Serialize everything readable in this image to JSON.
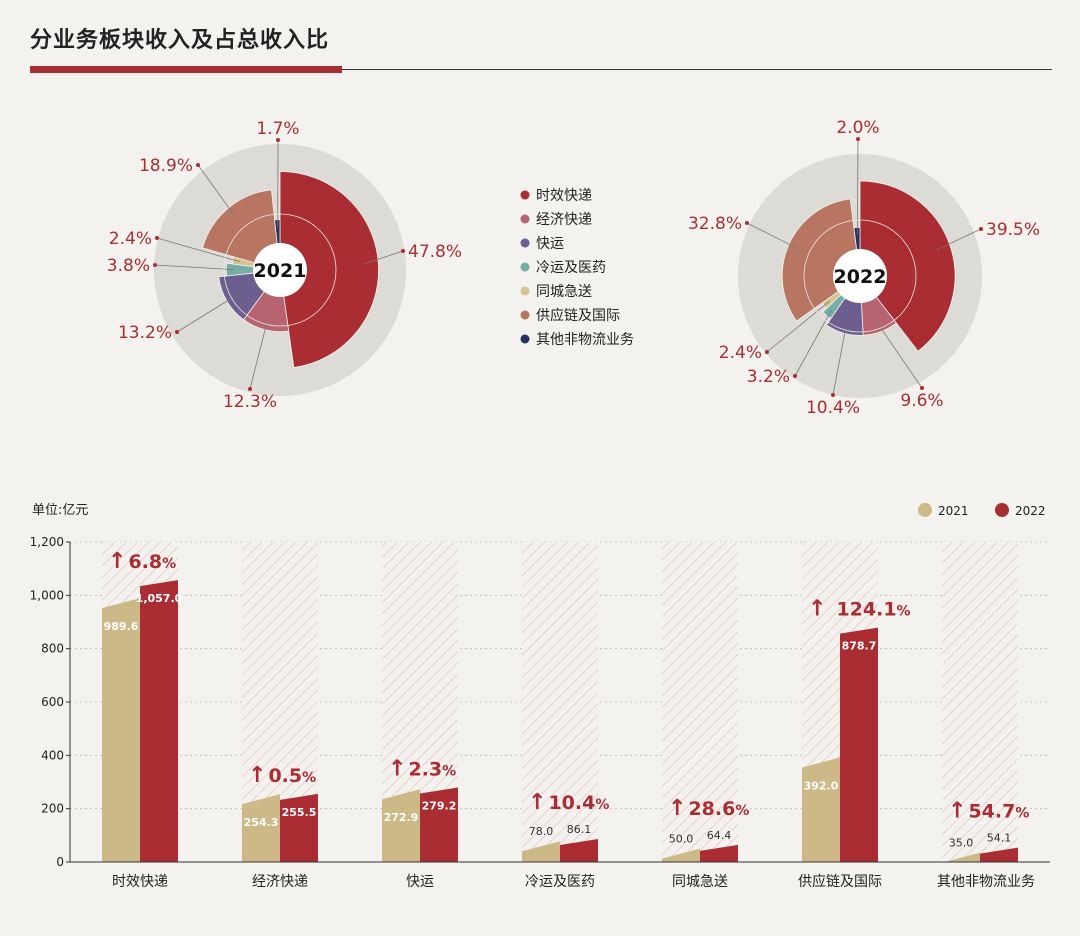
{
  "title": "分业务板块收入及占总收入比",
  "colors": {
    "accent": "#a92d33",
    "y2021_bar": "#cdb887",
    "y2022_bar": "#a92d33",
    "ring_bg": "#dcdbd6",
    "segments": [
      "#a92d33",
      "#b86470",
      "#6c5e8f",
      "#75aea6",
      "#d6c38d",
      "#b87562",
      "#26325f"
    ]
  },
  "legend": {
    "items": [
      {
        "label": "时效快递",
        "color": "#a92d33"
      },
      {
        "label": "经济快递",
        "color": "#b86470"
      },
      {
        "label": "快运",
        "color": "#6c5e8f"
      },
      {
        "label": "冷运及医药",
        "color": "#75aea6"
      },
      {
        "label": "同城急送",
        "color": "#d6c38d"
      },
      {
        "label": "供应链及国际",
        "color": "#b87562"
      },
      {
        "label": "其他非物流业务",
        "color": "#26325f"
      }
    ]
  },
  "chart_data": [
    {
      "type": "pie",
      "title": "2021",
      "categories": [
        "时效快递",
        "经济快递",
        "快运",
        "冷运及医药",
        "同城急送",
        "供应链及国际",
        "其他非物流业务"
      ],
      "values": [
        47.8,
        12.3,
        13.2,
        3.8,
        2.4,
        18.9,
        1.7
      ],
      "labels": [
        "47.8%",
        "12.3%",
        "13.2%",
        "3.8%",
        "2.4%",
        "18.9%",
        "1.7%"
      ]
    },
    {
      "type": "pie",
      "title": "2022",
      "categories": [
        "时效快递",
        "经济快递",
        "快运",
        "冷运及医药",
        "同城急送",
        "供应链及国际",
        "其他非物流业务"
      ],
      "values": [
        39.5,
        9.6,
        10.4,
        3.2,
        2.4,
        32.8,
        2.0
      ],
      "labels": [
        "39.5%",
        "9.6%",
        "10.4%",
        "3.2%",
        "2.4%",
        "32.8%",
        "2.0%"
      ]
    },
    {
      "type": "bar",
      "unit_label": "单位:亿元",
      "categories": [
        "时效快递",
        "经济快递",
        "快运",
        "冷运及医药",
        "同城急送",
        "供应链及国际",
        "其他非物流业务"
      ],
      "series": [
        {
          "name": "2021",
          "values": [
            989.6,
            254.3,
            272.9,
            78.0,
            50.0,
            392.0,
            35.0
          ],
          "labels": [
            "989.6",
            "254.3",
            "272.9",
            "78.0",
            "50.0",
            "392.0",
            "35.0"
          ]
        },
        {
          "name": "2022",
          "values": [
            1057.0,
            255.5,
            279.2,
            86.1,
            64.4,
            878.7,
            54.1
          ],
          "labels": [
            "1,057.0",
            "255.5",
            "279.2",
            "86.1",
            "64.4",
            "878.7",
            "54.1"
          ]
        }
      ],
      "growth": [
        {
          "arrow": "↑",
          "num": "6.8",
          "pct": "%"
        },
        {
          "arrow": "↑",
          "num": "0.5",
          "pct": "%"
        },
        {
          "arrow": "↑",
          "num": "2.3",
          "pct": "%"
        },
        {
          "arrow": "↑",
          "num": "10.4",
          "pct": "%"
        },
        {
          "arrow": "↑",
          "num": "28.6",
          "pct": "%"
        },
        {
          "arrow": "↑",
          "num": "124.1",
          "pct": "%"
        },
        {
          "arrow": "↑",
          "num": "54.7",
          "pct": "%"
        }
      ],
      "ylim": [
        0,
        1200
      ],
      "y_ticks": [
        0,
        200,
        400,
        600,
        800,
        1000,
        1200
      ],
      "y_tick_labels": [
        "0",
        "200",
        "400",
        "600",
        "800",
        "1,000",
        "1,200"
      ]
    }
  ]
}
